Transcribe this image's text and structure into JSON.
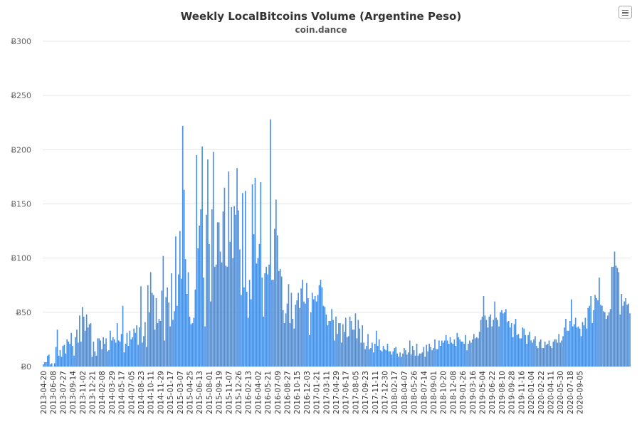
{
  "menu_icon": "hamburger-menu-icon",
  "colors": {
    "bar": "#4a90e2",
    "grid": "#e6e6e6",
    "axis": "#ccd6eb"
  },
  "chart_data": {
    "type": "bar",
    "title": "Weekly LocalBitcoins Volume (Argentine Peso)",
    "subtitle": "coin.dance",
    "xlabel": "",
    "ylabel": "",
    "ylim": [
      0,
      300
    ],
    "y_ticks": [
      "Ƀ0",
      "Ƀ50",
      "Ƀ100",
      "Ƀ150",
      "Ƀ200",
      "Ƀ250",
      "Ƀ300"
    ],
    "y_tick_values": [
      0,
      50,
      100,
      150,
      200,
      250,
      300
    ],
    "x_tick_labels": [
      "2013-04-20",
      "2013-06-08",
      "2013-07-27",
      "2013-09-14",
      "2013-11-02",
      "2013-12-21",
      "2014-02-08",
      "2014-03-29",
      "2014-05-17",
      "2014-07-05",
      "2014-08-23",
      "2014-10-11",
      "2014-11-29",
      "2015-01-17",
      "2015-03-07",
      "2015-04-25",
      "2015-06-13",
      "2015-08-01",
      "2015-09-19",
      "2015-11-07",
      "2015-12-26",
      "2016-02-13",
      "2016-04-02",
      "2016-05-21",
      "2016-07-09",
      "2016-08-27",
      "2016-10-15",
      "2016-12-03",
      "2017-01-21",
      "2017-03-11",
      "2017-04-29",
      "2017-06-17",
      "2017-08-05",
      "2017-09-23",
      "2017-11-11",
      "2017-12-30",
      "2018-02-17",
      "2018-04-07",
      "2018-05-26",
      "2018-07-14",
      "2018-09-01",
      "2018-10-20",
      "2018-12-08",
      "2019-01-26",
      "2019-03-16",
      "2019-05-04",
      "2019-06-22",
      "2019-08-10",
      "2019-09-28",
      "2019-11-16",
      "2020-01-04",
      "2020-02-22",
      "2020-04-11",
      "2020-05-30",
      "2020-07-18",
      "2020-09-05"
    ],
    "grid": true,
    "legend": "none",
    "values": [
      2,
      4,
      4,
      10,
      11,
      2,
      3,
      0,
      3,
      18,
      34,
      10,
      15,
      9,
      19,
      20,
      12,
      25,
      23,
      21,
      31,
      19,
      10,
      27,
      34,
      22,
      47,
      23,
      55,
      46,
      33,
      48,
      36,
      39,
      40,
      9,
      23,
      14,
      10,
      26,
      26,
      24,
      16,
      27,
      21,
      26,
      14,
      15,
      33,
      24,
      27,
      25,
      22,
      40,
      24,
      23,
      30,
      56,
      13,
      21,
      31,
      19,
      33,
      25,
      27,
      35,
      31,
      38,
      20,
      36,
      74,
      22,
      28,
      41,
      18,
      75,
      50,
      87,
      68,
      66,
      34,
      63,
      40,
      44,
      42,
      70,
      102,
      24,
      64,
      73,
      59,
      37,
      86,
      43,
      51,
      120,
      56,
      85,
      125,
      81,
      222,
      163,
      99,
      67,
      87,
      46,
      39,
      40,
      45,
      71,
      195,
      109,
      130,
      145,
      203,
      82,
      37,
      140,
      191,
      113,
      60,
      145,
      198,
      92,
      94,
      133,
      133,
      106,
      96,
      143,
      165,
      93,
      92,
      180,
      115,
      147,
      100,
      148,
      140,
      183,
      144,
      108,
      66,
      160,
      73,
      162,
      69,
      45,
      80,
      62,
      168,
      122,
      174,
      95,
      100,
      113,
      170,
      82,
      46,
      86,
      92,
      85,
      94,
      228,
      80,
      80,
      127,
      154,
      121,
      88,
      90,
      83,
      52,
      40,
      49,
      58,
      76,
      40,
      68,
      44,
      35,
      57,
      61,
      68,
      54,
      72,
      80,
      60,
      58,
      77,
      63,
      29,
      50,
      68,
      62,
      65,
      60,
      66,
      75,
      80,
      73,
      56,
      55,
      48,
      38,
      42,
      42,
      53,
      43,
      24,
      46,
      30,
      40,
      40,
      22,
      39,
      32,
      45,
      27,
      28,
      46,
      42,
      34,
      34,
      49,
      26,
      43,
      35,
      22,
      38,
      22,
      16,
      19,
      30,
      16,
      17,
      22,
      13,
      21,
      33,
      19,
      25,
      15,
      14,
      19,
      16,
      15,
      21,
      14,
      14,
      11,
      14,
      17,
      18,
      12,
      9,
      13,
      9,
      12,
      17,
      15,
      11,
      13,
      24,
      11,
      19,
      15,
      10,
      21,
      10,
      12,
      12,
      13,
      18,
      9,
      20,
      14,
      21,
      18,
      15,
      17,
      25,
      16,
      16,
      24,
      19,
      24,
      22,
      24,
      29,
      24,
      21,
      27,
      22,
      21,
      25,
      19,
      31,
      27,
      25,
      23,
      23,
      21,
      29,
      15,
      21,
      24,
      22,
      25,
      30,
      26,
      27,
      26,
      32,
      43,
      46,
      65,
      47,
      43,
      36,
      46,
      48,
      37,
      43,
      60,
      45,
      43,
      37,
      50,
      52,
      49,
      50,
      53,
      41,
      42,
      36,
      40,
      27,
      39,
      44,
      29,
      30,
      26,
      26,
      36,
      35,
      29,
      21,
      29,
      32,
      24,
      22,
      25,
      28,
      19,
      17,
      23,
      25,
      17,
      17,
      23,
      20,
      21,
      24,
      19,
      17,
      23,
      25,
      25,
      22,
      30,
      22,
      24,
      28,
      36,
      44,
      33,
      33,
      42,
      62,
      37,
      39,
      45,
      36,
      37,
      35,
      28,
      41,
      38,
      45,
      35,
      54,
      56,
      65,
      40,
      52,
      66,
      63,
      61,
      82,
      57,
      56,
      51,
      50,
      44,
      47,
      50,
      53,
      92,
      92,
      106,
      93,
      91,
      87,
      48,
      67,
      56,
      60,
      63,
      57,
      58,
      49
    ]
  }
}
